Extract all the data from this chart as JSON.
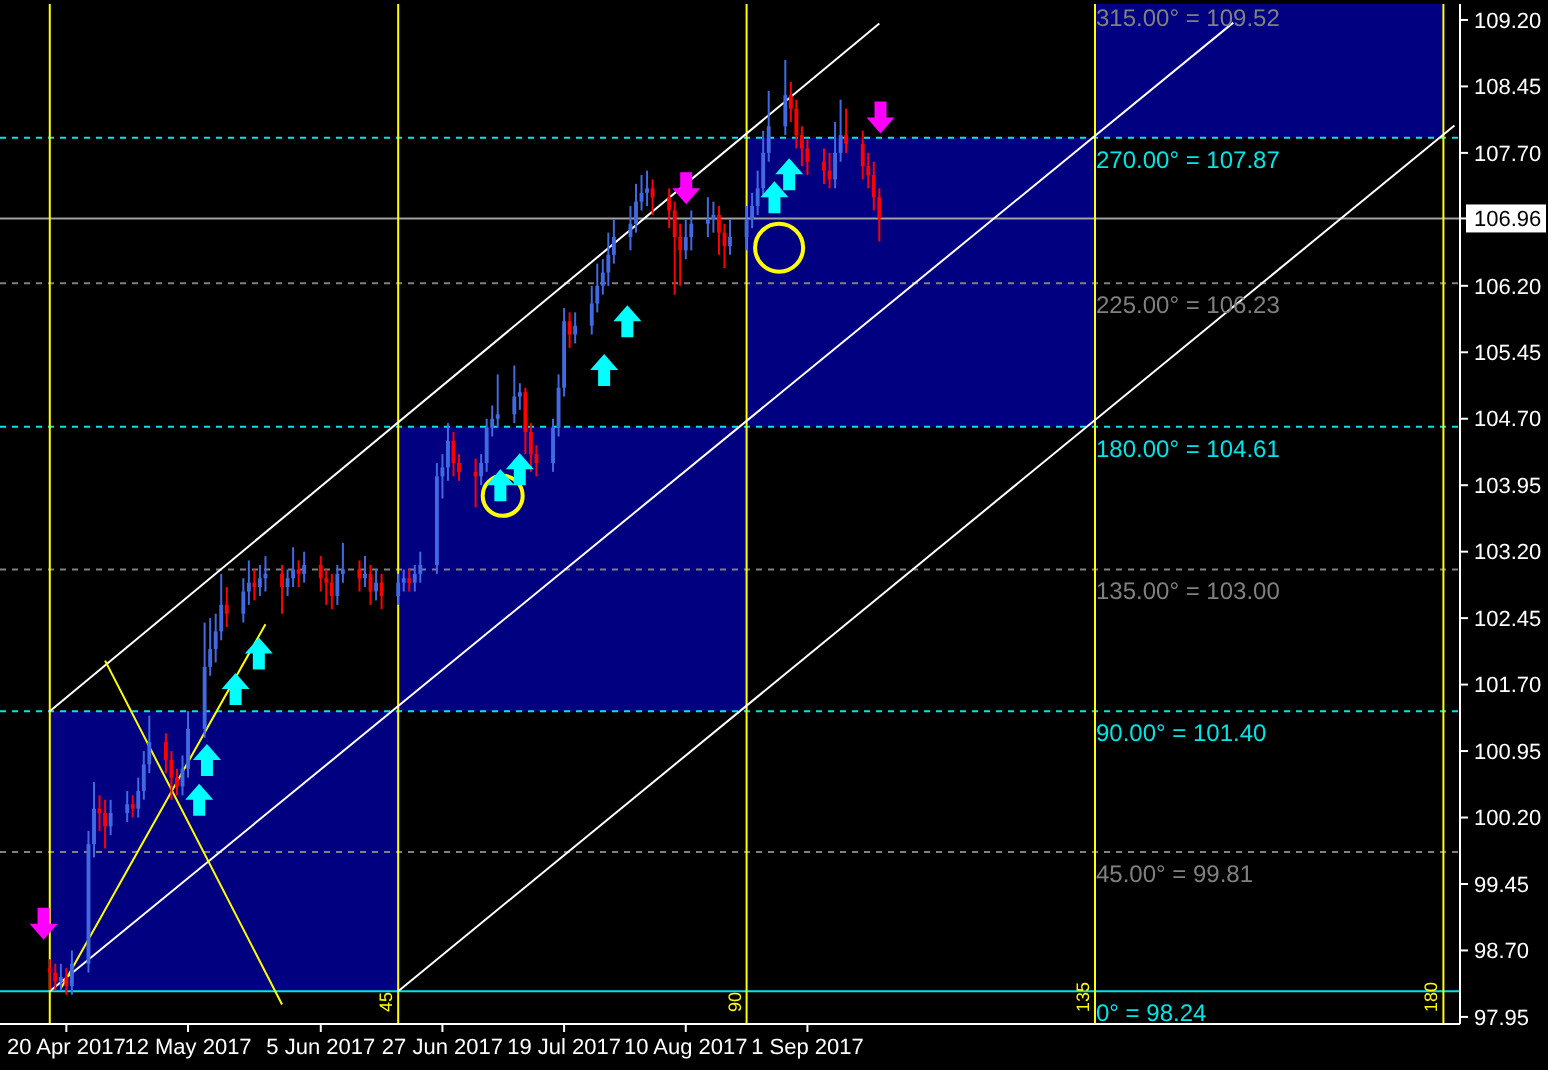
{
  "chart_data": {
    "type": "candlestick",
    "colors": [
      "#ff0000",
      "#ff0000",
      "#4169e1",
      "#ff0000",
      "#4169e1",
      "#4169e1",
      "#4169e1",
      "#ff0000",
      "#ff0000",
      "#4169e1",
      "#4169e1",
      "#ff0000",
      "#4169e1",
      "#4169e1",
      "#4169e1",
      "#ff0000",
      "#ff0000",
      "#ff0000",
      "#4169e1",
      "#4169e1",
      "#4169e1",
      "#4169e1",
      "#4169e1",
      "#4169e1",
      "#ff0000",
      "#4169e1",
      "#4169e1",
      "#ff0000",
      "#4169e1",
      "#4169e1",
      "#ff0000",
      "#4169e1",
      "#4169e1",
      "#ff0000",
      "#4169e1",
      "#ff0000",
      "#ff0000",
      "#ff0000",
      "#4169e1",
      "#4169e1",
      "#ff0000",
      "#4169e1",
      "#ff0000",
      "#4169e1",
      "#ff0000",
      "#4169e1",
      "#4169e1",
      "#ff0000",
      "#4169e1",
      "#4169e1",
      "#4169e1",
      "#4169e1",
      "#4169e1",
      "#ff0000",
      "#ff0000",
      "#ff0000",
      "#4169e1",
      "#4169e1",
      "#4169e1",
      "#4169e1",
      "#4169e1",
      "#4169e1",
      "#ff0000",
      "#ff0000",
      "#ff0000",
      "#4169e1",
      "#4169e1",
      "#4169e1",
      "#ff0000",
      "#4169e1",
      "#4169e1",
      "#4169e1",
      "#4169e1",
      "#4169e1",
      "#4169e1",
      "#4169e1",
      "#4169e1",
      "#4169e1",
      "#4169e1",
      "#ff0000",
      "#ff0000",
      "#ff0000",
      "#ff0000",
      "#4169e1",
      "#4169e1",
      "#4169e1",
      "#4169e1",
      "#ff0000",
      "#ff0000",
      "#4169e1",
      "#4169e1",
      "#4169e1",
      "#4169e1",
      "#4169e1",
      "#4169e1",
      "#4169e1",
      "#ff0000",
      "#ff0000",
      "#ff0000",
      "#ff0000",
      "#ff0000",
      "#ff0000",
      "#4169e1",
      "#4169e1",
      "#ff0000",
      "#ff0000",
      "#ff0000",
      "#ff0000",
      "#ff0000"
    ],
    "x": [
      "2017-04-17",
      "2017-04-18",
      "2017-04-19",
      "2017-04-20",
      "2017-04-21",
      "2017-04-24",
      "2017-04-25",
      "2017-04-26",
      "2017-04-27",
      "2017-04-28",
      "2017-05-01",
      "2017-05-02",
      "2017-05-03",
      "2017-05-04",
      "2017-05-05",
      "2017-05-08",
      "2017-05-09",
      "2017-05-10",
      "2017-05-11",
      "2017-05-12",
      "2017-05-15",
      "2017-05-16",
      "2017-05-17",
      "2017-05-18",
      "2017-05-19",
      "2017-05-22",
      "2017-05-23",
      "2017-05-24",
      "2017-05-25",
      "2017-05-26",
      "2017-05-29",
      "2017-05-30",
      "2017-05-31",
      "2017-06-01",
      "2017-06-02",
      "2017-06-05",
      "2017-06-06",
      "2017-06-07",
      "2017-06-08",
      "2017-06-09",
      "2017-06-12",
      "2017-06-13",
      "2017-06-14",
      "2017-06-15",
      "2017-06-16",
      "2017-06-19",
      "2017-06-20",
      "2017-06-21",
      "2017-06-22",
      "2017-06-23",
      "2017-06-26",
      "2017-06-27",
      "2017-06-28",
      "2017-06-29",
      "2017-06-30",
      "2017-07-03",
      "2017-07-04",
      "2017-07-05",
      "2017-07-06",
      "2017-07-07",
      "2017-07-10",
      "2017-07-11",
      "2017-07-12",
      "2017-07-13",
      "2017-07-14",
      "2017-07-17",
      "2017-07-18",
      "2017-07-19",
      "2017-07-20",
      "2017-07-21",
      "2017-07-24",
      "2017-07-25",
      "2017-07-26",
      "2017-07-27",
      "2017-07-28",
      "2017-07-31",
      "2017-08-01",
      "2017-08-02",
      "2017-08-03",
      "2017-08-04",
      "2017-08-07",
      "2017-08-08",
      "2017-08-09",
      "2017-08-10",
      "2017-08-11",
      "2017-08-14",
      "2017-08-15",
      "2017-08-16",
      "2017-08-17",
      "2017-08-18",
      "2017-08-21",
      "2017-08-22",
      "2017-08-23",
      "2017-08-24",
      "2017-08-25",
      "2017-08-28",
      "2017-08-29",
      "2017-08-30",
      "2017-08-31",
      "2017-09-01",
      "2017-09-04",
      "2017-09-05",
      "2017-09-06",
      "2017-09-07",
      "2017-09-08",
      "2017-09-11",
      "2017-09-12",
      "2017-09-13",
      "2017-09-14"
    ],
    "ohlc": [
      [
        98.5,
        98.6,
        98.25,
        98.45
      ],
      [
        98.45,
        98.55,
        98.25,
        98.35
      ],
      [
        98.35,
        98.55,
        98.25,
        98.4
      ],
      [
        98.4,
        98.5,
        98.2,
        98.3
      ],
      [
        98.3,
        98.7,
        98.2,
        98.55
      ],
      [
        98.55,
        100.05,
        98.45,
        99.9
      ],
      [
        99.9,
        100.6,
        99.75,
        100.3
      ],
      [
        100.3,
        100.45,
        100.05,
        100.25
      ],
      [
        100.25,
        100.4,
        99.85,
        100.1
      ],
      [
        100.1,
        100.4,
        100.0,
        100.25
      ],
      [
        100.25,
        100.5,
        100.15,
        100.35
      ],
      [
        100.35,
        100.45,
        100.2,
        100.3
      ],
      [
        100.3,
        100.65,
        100.2,
        100.5
      ],
      [
        100.5,
        100.95,
        100.4,
        100.8
      ],
      [
        100.8,
        101.35,
        100.7,
        101.05
      ],
      [
        101.05,
        101.15,
        100.7,
        100.85
      ],
      [
        100.85,
        100.95,
        100.4,
        100.65
      ],
      [
        100.65,
        100.75,
        100.45,
        100.55
      ],
      [
        100.55,
        100.9,
        100.45,
        100.75
      ],
      [
        100.75,
        101.4,
        100.65,
        101.2
      ],
      [
        101.2,
        102.4,
        101.1,
        101.9
      ],
      [
        101.9,
        102.45,
        101.8,
        102.1
      ],
      [
        102.1,
        102.5,
        101.95,
        102.3
      ],
      [
        102.3,
        102.95,
        102.2,
        102.6
      ],
      [
        102.6,
        102.8,
        102.35,
        102.5
      ],
      [
        102.5,
        102.9,
        102.4,
        102.75
      ],
      [
        102.75,
        103.1,
        102.6,
        102.85
      ],
      [
        102.85,
        103.0,
        102.65,
        102.8
      ],
      [
        102.8,
        103.05,
        102.7,
        102.9
      ],
      [
        102.9,
        103.15,
        102.75,
        102.95
      ],
      [
        102.95,
        103.05,
        102.5,
        102.8
      ],
      [
        102.8,
        103.0,
        102.7,
        102.9
      ],
      [
        102.9,
        103.25,
        102.8,
        103.0
      ],
      [
        103.0,
        103.1,
        102.8,
        102.95
      ],
      [
        102.95,
        103.2,
        102.85,
        103.05
      ],
      [
        103.05,
        103.15,
        102.75,
        102.9
      ],
      [
        102.9,
        103.0,
        102.6,
        102.85
      ],
      [
        102.85,
        102.95,
        102.55,
        102.7
      ],
      [
        102.7,
        103.05,
        102.6,
        102.95
      ],
      [
        102.95,
        103.3,
        102.85,
        103.0
      ],
      [
        103.0,
        103.1,
        102.75,
        102.9
      ],
      [
        102.9,
        103.15,
        102.8,
        102.95
      ],
      [
        102.95,
        103.05,
        102.6,
        102.75
      ],
      [
        102.75,
        103.0,
        102.65,
        102.85
      ],
      [
        102.85,
        102.95,
        102.55,
        102.7
      ],
      [
        102.7,
        102.95,
        102.6,
        102.85
      ],
      [
        102.85,
        103.0,
        102.75,
        102.9
      ],
      [
        102.9,
        103.0,
        102.75,
        102.85
      ],
      [
        102.85,
        103.05,
        102.75,
        102.95
      ],
      [
        102.95,
        103.2,
        102.85,
        103.05
      ],
      [
        103.05,
        104.2,
        102.95,
        104.05
      ],
      [
        104.05,
        104.3,
        103.8,
        104.15
      ],
      [
        104.15,
        104.65,
        104.0,
        104.45
      ],
      [
        104.45,
        104.55,
        104.05,
        104.2
      ],
      [
        104.2,
        104.3,
        104.0,
        104.1
      ],
      [
        104.1,
        104.25,
        103.7,
        104.05
      ],
      [
        104.05,
        104.3,
        103.95,
        104.2
      ],
      [
        104.2,
        104.7,
        104.1,
        104.6
      ],
      [
        104.6,
        104.85,
        104.5,
        104.7
      ],
      [
        104.7,
        105.2,
        104.6,
        104.75
      ],
      [
        104.75,
        105.3,
        104.65,
        104.95
      ],
      [
        104.95,
        105.1,
        104.8,
        105.0
      ],
      [
        105.0,
        105.05,
        104.3,
        104.55
      ],
      [
        104.55,
        104.65,
        104.1,
        104.3
      ],
      [
        104.3,
        104.4,
        104.05,
        104.2
      ],
      [
        104.2,
        104.7,
        104.1,
        104.6
      ],
      [
        104.6,
        105.2,
        104.5,
        105.05
      ],
      [
        105.05,
        105.95,
        104.95,
        105.8
      ],
      [
        105.8,
        105.9,
        105.5,
        105.65
      ],
      [
        105.65,
        105.9,
        105.55,
        105.75
      ],
      [
        105.75,
        106.2,
        105.65,
        106.0
      ],
      [
        106.0,
        106.45,
        105.9,
        106.2
      ],
      [
        106.2,
        106.5,
        106.1,
        106.35
      ],
      [
        106.35,
        106.8,
        106.2,
        106.55
      ],
      [
        106.55,
        106.95,
        106.45,
        106.75
      ],
      [
        106.75,
        107.1,
        106.6,
        106.9
      ],
      [
        106.9,
        107.35,
        106.8,
        107.15
      ],
      [
        107.15,
        107.45,
        107.05,
        107.25
      ],
      [
        107.25,
        107.5,
        107.1,
        107.3
      ],
      [
        107.3,
        107.4,
        107.0,
        107.2
      ],
      [
        107.2,
        107.3,
        106.85,
        107.05
      ],
      [
        107.05,
        107.15,
        106.1,
        106.75
      ],
      [
        106.75,
        106.9,
        106.2,
        106.6
      ],
      [
        106.6,
        106.95,
        106.5,
        106.75
      ],
      [
        106.75,
        107.05,
        106.6,
        106.9
      ],
      [
        106.9,
        107.2,
        106.75,
        106.95
      ],
      [
        106.95,
        107.15,
        106.8,
        107.0
      ],
      [
        107.0,
        107.1,
        106.55,
        106.8
      ],
      [
        106.8,
        106.9,
        106.4,
        106.65
      ],
      [
        106.65,
        106.95,
        106.55,
        106.75
      ],
      [
        106.75,
        107.1,
        106.6,
        106.95
      ],
      [
        106.95,
        107.25,
        106.85,
        107.1
      ],
      [
        107.1,
        107.5,
        107.0,
        107.3
      ],
      [
        107.3,
        107.95,
        107.2,
        107.7
      ],
      [
        107.7,
        108.4,
        107.6,
        108.0
      ],
      [
        108.0,
        108.75,
        107.9,
        108.35
      ],
      [
        108.35,
        108.5,
        108.05,
        108.2
      ],
      [
        108.2,
        108.3,
        107.75,
        107.9
      ],
      [
        107.9,
        108.0,
        107.55,
        107.75
      ],
      [
        107.75,
        107.85,
        107.45,
        107.6
      ],
      [
        107.6,
        107.75,
        107.35,
        107.5
      ],
      [
        107.5,
        107.7,
        107.3,
        107.4
      ],
      [
        107.4,
        108.05,
        107.3,
        107.7
      ],
      [
        107.7,
        108.3,
        107.6,
        107.9
      ],
      [
        107.9,
        108.2,
        107.7,
        107.8
      ],
      [
        107.8,
        107.95,
        107.4,
        107.55
      ],
      [
        107.55,
        107.7,
        107.3,
        107.45
      ],
      [
        107.45,
        107.6,
        107.05,
        107.2
      ],
      [
        107.2,
        107.3,
        106.7,
        106.96
      ]
    ],
    "series": [
      {
        "type": "line",
        "color": "#ffffff",
        "x": [
          "2017-04-17",
          "2017-09-14"
        ],
        "values": [
          101.4,
          109.16
        ]
      },
      {
        "type": "line",
        "color": "#ffffff",
        "x": [
          "2017-04-17",
          "2017-11-17"
        ],
        "values": [
          98.24,
          109.17
        ]
      },
      {
        "type": "line",
        "color": "#ffffff",
        "x": [
          "2017-06-19",
          "2017-12-27"
        ],
        "values": [
          98.24,
          108.01
        ]
      },
      {
        "type": "line",
        "color": "#ffff00",
        "x": [
          "2017-04-27",
          "2017-05-29"
        ],
        "values": [
          101.97,
          98.09
        ]
      },
      {
        "type": "line",
        "color": "#ffff00",
        "x": [
          "2017-04-19",
          "2017-05-26"
        ],
        "values": [
          98.27,
          102.38
        ]
      }
    ],
    "xlim": [
      "2017-04-08",
      "2017-12-28"
    ],
    "ylim": [
      97.87,
      109.38
    ],
    "xticks": [
      {
        "value": "2017-04-20",
        "label": "20 Apr 2017"
      },
      {
        "value": "2017-05-12",
        "label": "12 May 2017"
      },
      {
        "value": "2017-06-05",
        "label": "5 Jun 2017"
      },
      {
        "value": "2017-06-27",
        "label": "27 Jun 2017"
      },
      {
        "value": "2017-07-19",
        "label": "19 Jul 2017"
      },
      {
        "value": "2017-08-10",
        "label": "10 Aug 2017"
      },
      {
        "value": "2017-09-01",
        "label": "1 Sep 2017"
      }
    ],
    "yticks": [
      {
        "value": 97.95,
        "label": "97.95"
      },
      {
        "value": 98.7,
        "label": "98.70"
      },
      {
        "value": 99.45,
        "label": "99.45"
      },
      {
        "value": 100.2,
        "label": "100.20"
      },
      {
        "value": 100.95,
        "label": "100.95"
      },
      {
        "value": 101.7,
        "label": "101.70"
      },
      {
        "value": 102.45,
        "label": "102.45"
      },
      {
        "value": 103.2,
        "label": "103.20"
      },
      {
        "value": 103.95,
        "label": "103.95"
      },
      {
        "value": 104.7,
        "label": "104.70"
      },
      {
        "value": 105.45,
        "label": "105.45"
      },
      {
        "value": 106.2,
        "label": "106.20"
      },
      {
        "value": 106.96,
        "label": "106.96"
      },
      {
        "value": 107.7,
        "label": "107.70"
      },
      {
        "value": 108.45,
        "label": "108.45"
      },
      {
        "value": 109.2,
        "label": "109.20"
      }
    ],
    "ref_lines": [
      {
        "axis": "y",
        "value": 98.24,
        "label": "0° = 98.24",
        "color": "#00e5e5",
        "line_style": "solid"
      },
      {
        "axis": "y",
        "value": 99.81,
        "label": "45.00° = 99.81",
        "color": "#808080",
        "line_style": "dashed"
      },
      {
        "axis": "y",
        "value": 101.4,
        "label": "90.00° = 101.40",
        "color": "#00e5e5",
        "line_style": "dashed"
      },
      {
        "axis": "y",
        "value": 103.0,
        "label": "135.00° = 103.00",
        "color": "#808080",
        "line_style": "dashed"
      },
      {
        "axis": "y",
        "value": 104.61,
        "label": "180.00° = 104.61",
        "color": "#00e5e5",
        "line_style": "dashed"
      },
      {
        "axis": "y",
        "value": 106.23,
        "label": "225.00° = 106.23",
        "color": "#808080",
        "line_style": "dashed"
      },
      {
        "axis": "y",
        "value": 107.87,
        "label": "270.00° = 107.87",
        "color": "#00e5e5",
        "line_style": "dashed"
      },
      {
        "axis": "y",
        "value": 106.96,
        "color": "#a0a0a0",
        "line_style": "solid"
      },
      {
        "axis": "x",
        "value": "2017-04-17",
        "color": "#ffff00",
        "line_style": "solid"
      },
      {
        "axis": "x",
        "value": "2017-06-19",
        "label": "45",
        "color": "#ffff00",
        "line_style": "solid"
      },
      {
        "axis": "x",
        "value": "2017-08-21",
        "label": "90",
        "color": "#ffff00",
        "line_style": "solid"
      },
      {
        "axis": "x",
        "value": "2017-10-23",
        "label": "135",
        "color": "#ffff00",
        "line_style": "solid"
      },
      {
        "axis": "x",
        "value": "2017-12-25",
        "label": "180",
        "color": "#ffff00",
        "line_style": "solid"
      }
    ],
    "annotations": [
      "315.00° = 109.52"
    ]
  }
}
